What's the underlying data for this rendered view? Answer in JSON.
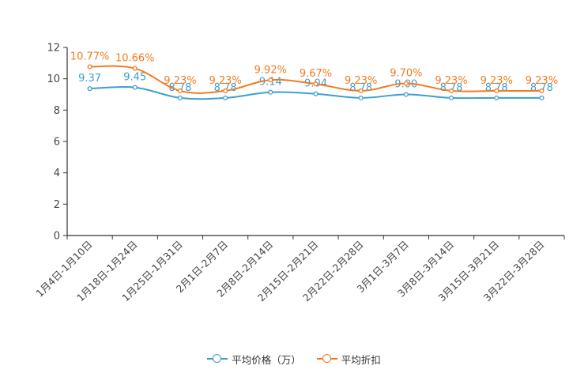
{
  "chart_data": {
    "type": "line",
    "title": "",
    "xlabel": "",
    "ylabel": "",
    "ylim": [
      0,
      12
    ],
    "yticks": [
      0,
      2,
      4,
      6,
      8,
      10,
      12
    ],
    "categories": [
      "1月4日-1月10日",
      "1月18日-1月24日",
      "1月25日-1月31日",
      "2月1日-2月7日",
      "2月8日-2月14日",
      "2月15日-2月21日",
      "2月22日-2月28日",
      "3月1日-3月7日",
      "3月8日-3月14日",
      "3月15日-3月21日",
      "3月22日-3月28日"
    ],
    "series": [
      {
        "name": "平均价格（万）",
        "color": "#3d9fd0",
        "values": [
          9.37,
          9.45,
          8.78,
          8.78,
          9.14,
          9.04,
          8.78,
          9.0,
          8.78,
          8.78,
          8.78
        ],
        "labels": [
          "9.37",
          "9.45",
          "8.78",
          "8.78",
          "9.14",
          "9.04",
          "8.78",
          "9.00",
          "8.78",
          "8.78",
          "8.78"
        ]
      },
      {
        "name": "平均折扣",
        "color": "#f47a20",
        "values": [
          10.77,
          10.66,
          9.23,
          9.23,
          9.92,
          9.67,
          9.23,
          9.7,
          9.23,
          9.23,
          9.23
        ],
        "labels": [
          "10.77%",
          "10.66%",
          "9.23%",
          "9.23%",
          "9.92%",
          "9.67%",
          "9.23%",
          "9.70%",
          "9.23%",
          "9.23%",
          "9.23%"
        ]
      }
    ],
    "legend_position": "bottom-center",
    "grid": false
  }
}
